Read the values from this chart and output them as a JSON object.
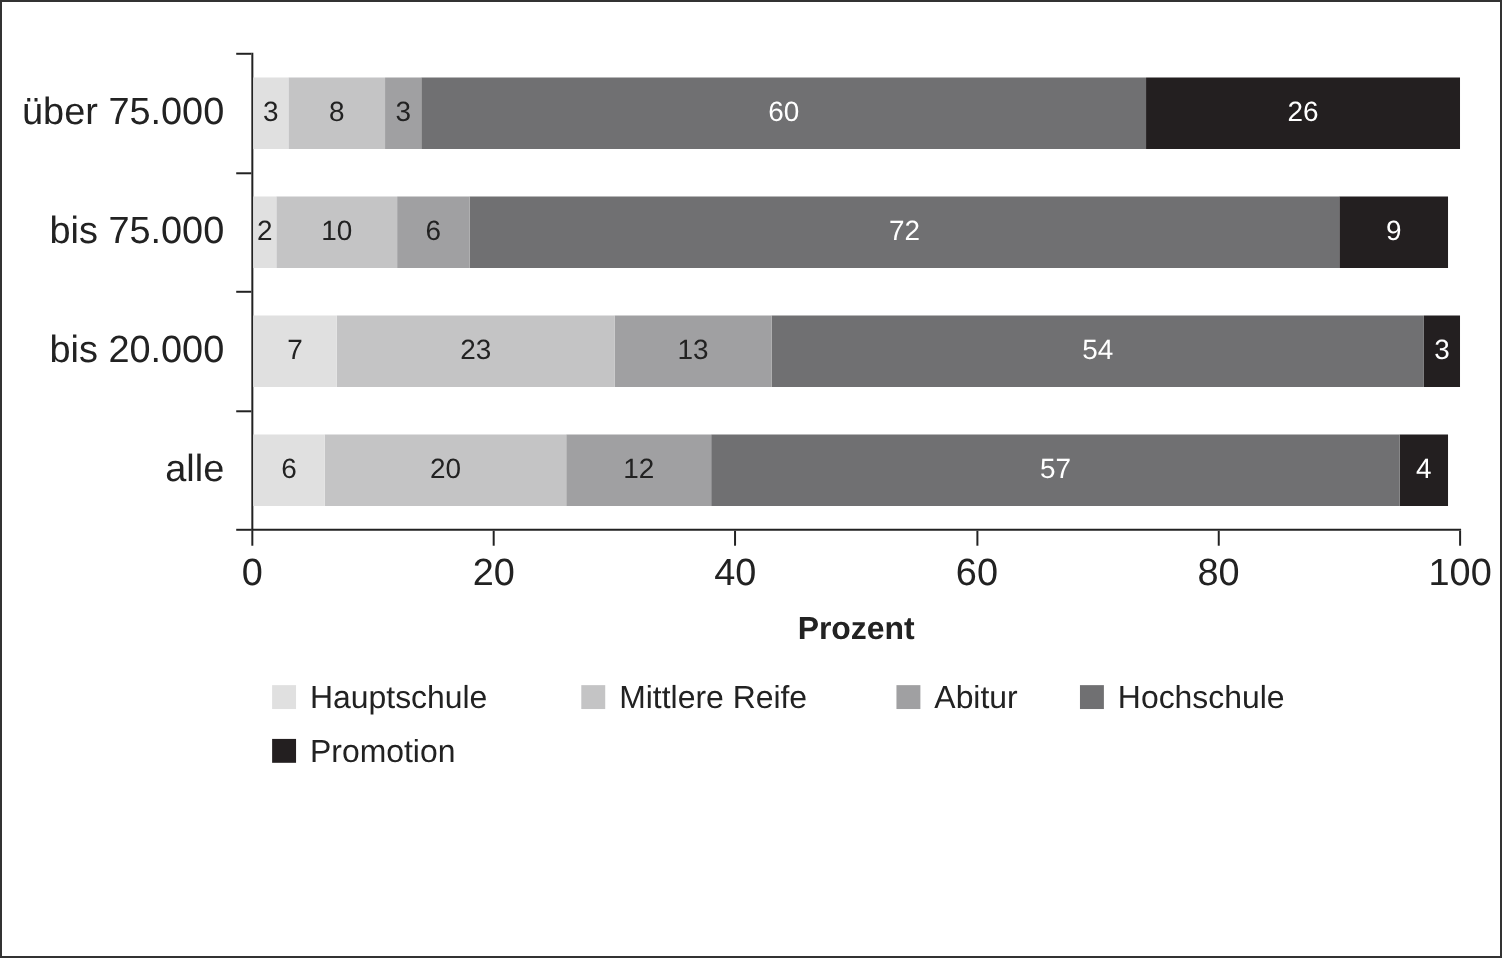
{
  "chart_data": {
    "type": "bar",
    "orientation": "horizontal",
    "stacked": true,
    "xlabel": "Prozent",
    "categories": [
      "über 75.000",
      "bis 75.000",
      "bis 20.000",
      "alle"
    ],
    "series": [
      {
        "name": "Hauptschule",
        "color": "#e0e0e0",
        "values": [
          3,
          2,
          7,
          6
        ]
      },
      {
        "name": "Mittlere Reife",
        "color": "#c4c4c5",
        "values": [
          8,
          10,
          23,
          20
        ]
      },
      {
        "name": "Abitur",
        "color": "#a0a0a2",
        "values": [
          3,
          6,
          13,
          12
        ]
      },
      {
        "name": "Hochschule",
        "color": "#707072",
        "values": [
          60,
          72,
          54,
          57
        ]
      },
      {
        "name": "Promotion",
        "color": "#231f20",
        "values": [
          26,
          9,
          3,
          4
        ]
      }
    ],
    "xlim": [
      0,
      100
    ],
    "xticks": [
      0,
      20,
      40,
      60,
      80,
      100
    ],
    "grid": false,
    "legend": "bottom",
    "data_labels": true
  }
}
